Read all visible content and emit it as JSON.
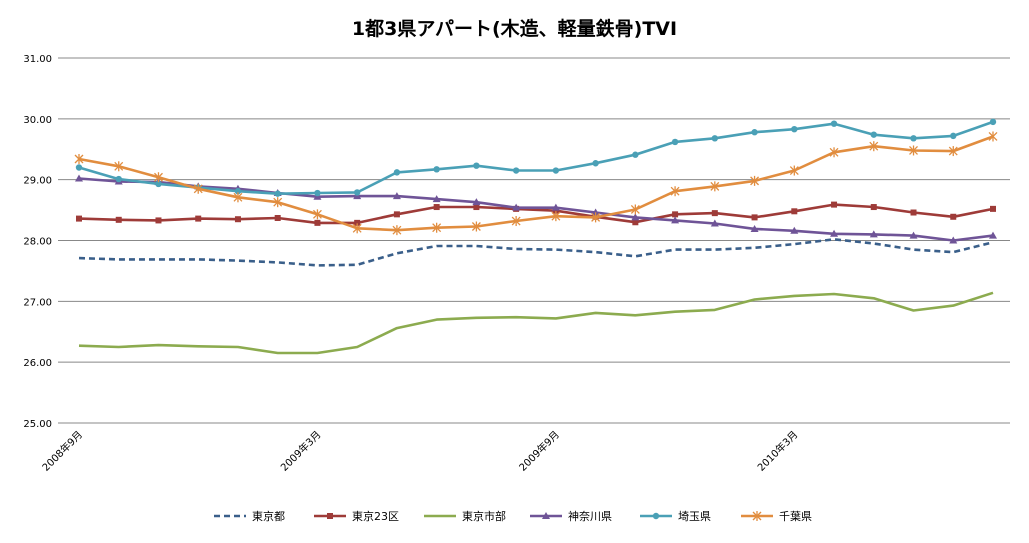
{
  "chart_data": {
    "type": "line",
    "title": "1都3県アパート(木造、軽量鉄骨)TVI",
    "xlabel": "",
    "ylabel": "",
    "ylim": [
      25.0,
      31.0
    ],
    "yticks": [
      "25.00",
      "26.00",
      "27.00",
      "28.00",
      "29.00",
      "30.00",
      "31.00"
    ],
    "grid": true,
    "legend_position": "bottom",
    "x": [
      "2008年9月",
      "2008年10月",
      "2008年11月",
      "2008年12月",
      "2009年1月",
      "2009年2月",
      "2009年3月",
      "2009年4月",
      "2009年5月",
      "2009年6月",
      "2009年7月",
      "2009年8月",
      "2009年9月",
      "2009年10月",
      "2009年11月",
      "2009年12月",
      "2010年1月",
      "2010年2月",
      "2010年3月",
      "2010年4月",
      "2010年5月",
      "2010年6月",
      "2010年7月",
      "2010年8月"
    ],
    "x_tick_labels": [
      "2008年9月",
      "",
      "",
      "",
      "",
      "",
      "2009年3月",
      "",
      "",
      "",
      "",
      "",
      "2009年9月",
      "",
      "",
      "",
      "",
      "",
      "2010年3月",
      "",
      "",
      "",
      "",
      ""
    ],
    "series": [
      {
        "name": "東京都",
        "color": "#3a5f8a",
        "style": "dashed",
        "marker": "none",
        "values": [
          27.71,
          27.69,
          27.69,
          27.69,
          27.67,
          27.64,
          27.59,
          27.6,
          27.79,
          27.91,
          27.91,
          27.86,
          27.85,
          27.81,
          27.74,
          27.85,
          27.85,
          27.88,
          27.94,
          28.02,
          27.95,
          27.85,
          27.81,
          27.97
        ]
      },
      {
        "name": "東京23区",
        "color": "#9e3b38",
        "style": "solid",
        "marker": "square",
        "values": [
          28.36,
          28.34,
          28.33,
          28.36,
          28.35,
          28.37,
          28.29,
          28.29,
          28.43,
          28.55,
          28.55,
          28.52,
          28.49,
          28.39,
          28.3,
          28.43,
          28.45,
          28.38,
          28.48,
          28.59,
          28.55,
          28.46,
          28.39,
          28.52
        ]
      },
      {
        "name": "東京市部",
        "color": "#8cab4f",
        "style": "solid",
        "marker": "none",
        "values": [
          26.27,
          26.25,
          26.28,
          26.26,
          26.25,
          26.15,
          26.15,
          26.25,
          26.56,
          26.7,
          26.73,
          26.74,
          26.72,
          26.81,
          26.77,
          26.83,
          26.86,
          27.03,
          27.09,
          27.12,
          27.05,
          26.85,
          26.93,
          27.14
        ]
      },
      {
        "name": "神奈川県",
        "color": "#6f5497",
        "style": "solid",
        "marker": "triangle",
        "values": [
          29.02,
          28.97,
          28.96,
          28.89,
          28.85,
          28.78,
          28.72,
          28.73,
          28.73,
          28.68,
          28.63,
          28.54,
          28.54,
          28.46,
          28.38,
          28.33,
          28.28,
          28.19,
          28.16,
          28.11,
          28.1,
          28.08,
          28.0,
          28.08
        ]
      },
      {
        "name": "埼玉県",
        "color": "#4aa0b6",
        "style": "solid",
        "marker": "circle",
        "values": [
          29.2,
          29.01,
          28.93,
          28.87,
          28.81,
          28.77,
          28.78,
          28.79,
          29.12,
          29.17,
          29.23,
          29.15,
          29.15,
          29.27,
          29.41,
          29.62,
          29.68,
          29.78,
          29.83,
          29.92,
          29.74,
          29.68,
          29.72,
          29.95
        ]
      },
      {
        "name": "千葉県",
        "color": "#e18d3f",
        "style": "solid",
        "marker": "star",
        "values": [
          29.34,
          29.22,
          29.04,
          28.85,
          28.71,
          28.63,
          28.43,
          28.2,
          28.17,
          28.21,
          28.23,
          28.32,
          28.4,
          28.38,
          28.51,
          28.81,
          28.89,
          28.98,
          29.15,
          29.45,
          29.55,
          29.48,
          29.47,
          29.71
        ]
      }
    ]
  }
}
